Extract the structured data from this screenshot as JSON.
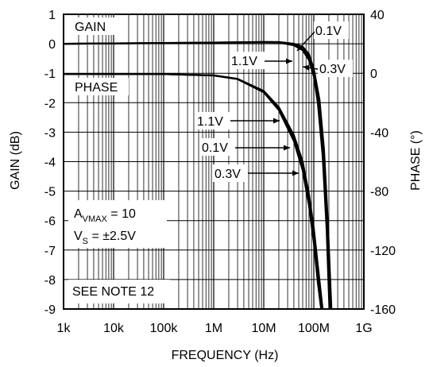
{
  "chart_data": {
    "type": "line",
    "xlabel": "FREQUENCY (Hz)",
    "ylabel_left": "GAIN (dB)",
    "ylabel_right": "PHASE (°)",
    "x_scale": "log",
    "xlim": [
      1000,
      1000000000
    ],
    "ylim_left": [
      -9,
      1
    ],
    "ylim_right": [
      -160,
      40
    ],
    "grid": true,
    "x_ticks": [
      {
        "value": 1000,
        "label": "1k"
      },
      {
        "value": 10000,
        "label": "10k"
      },
      {
        "value": 100000,
        "label": "100k"
      },
      {
        "value": 1000000,
        "label": "1M"
      },
      {
        "value": 10000000,
        "label": "10M"
      },
      {
        "value": 100000000,
        "label": "100M"
      },
      {
        "value": 1000000000,
        "label": "1G"
      }
    ],
    "y_left_ticks": [
      {
        "value": 1,
        "label": "1"
      },
      {
        "value": 0,
        "label": "0"
      },
      {
        "value": -1,
        "label": "-1"
      },
      {
        "value": -2,
        "label": "-2"
      },
      {
        "value": -3,
        "label": "-3"
      },
      {
        "value": -4,
        "label": "-4"
      },
      {
        "value": -5,
        "label": "-5"
      },
      {
        "value": -6,
        "label": "-6"
      },
      {
        "value": -7,
        "label": "-7"
      },
      {
        "value": -8,
        "label": "-8"
      },
      {
        "value": -9,
        "label": "-9"
      }
    ],
    "y_right_ticks": [
      {
        "value": 40,
        "label": "40"
      },
      {
        "value": 0,
        "label": "0"
      },
      {
        "value": -40,
        "label": "-40"
      },
      {
        "value": -80,
        "label": "-80"
      },
      {
        "value": -120,
        "label": "-120"
      },
      {
        "value": -160,
        "label": "-160"
      }
    ],
    "series": [
      {
        "name": "0.1V",
        "group": "gain",
        "axis": "left",
        "x": [
          1000,
          1000000,
          10000000,
          20000000,
          40000000,
          60000000,
          80000000,
          100000000,
          120000000,
          150000000,
          180000000,
          210000000
        ],
        "y": [
          0,
          0.04,
          0.06,
          0.06,
          0.0,
          -0.15,
          -0.45,
          -1.0,
          -1.9,
          -3.6,
          -6.0,
          -9.0
        ]
      },
      {
        "name": "1.1V",
        "group": "gain",
        "axis": "left",
        "x": [
          1000,
          1000000,
          10000000,
          20000000,
          40000000,
          60000000,
          80000000,
          100000000,
          120000000,
          150000000,
          180000000,
          205000000
        ],
        "y": [
          0,
          0.03,
          0.05,
          0.04,
          -0.05,
          -0.22,
          -0.55,
          -1.1,
          -2.0,
          -3.8,
          -6.3,
          -9.0
        ]
      },
      {
        "name": "0.3V",
        "group": "gain",
        "axis": "left",
        "x": [
          1000,
          1000000,
          10000000,
          20000000,
          40000000,
          60000000,
          80000000,
          100000000,
          130000000,
          160000000,
          190000000,
          225000000
        ],
        "y": [
          0,
          0.04,
          0.06,
          0.05,
          0.0,
          -0.1,
          -0.35,
          -0.85,
          -1.9,
          -3.6,
          -6.0,
          -9.0
        ]
      },
      {
        "name": "1.1V",
        "group": "phase",
        "axis": "right",
        "x": [
          1000,
          100000,
          1000000,
          3000000,
          10000000,
          20000000,
          40000000,
          60000000,
          80000000,
          100000000,
          120000000,
          140000000
        ],
        "y": [
          -0.5,
          -0.6,
          -1.5,
          -4,
          -13,
          -25,
          -46,
          -66,
          -90,
          -115,
          -142,
          -160
        ]
      },
      {
        "name": "0.1V",
        "group": "phase",
        "axis": "right",
        "x": [
          1000,
          100000,
          1000000,
          3000000,
          10000000,
          20000000,
          40000000,
          60000000,
          80000000,
          100000000,
          120000000,
          145000000
        ],
        "y": [
          -0.5,
          -0.6,
          -1.5,
          -4,
          -12.5,
          -24,
          -44,
          -63,
          -86,
          -110,
          -136,
          -160
        ]
      },
      {
        "name": "0.3V",
        "group": "phase",
        "axis": "right",
        "x": [
          1000,
          100000,
          1000000,
          3000000,
          10000000,
          20000000,
          40000000,
          60000000,
          80000000,
          100000000,
          120000000,
          150000000
        ],
        "y": [
          -0.5,
          -0.6,
          -1.4,
          -3.8,
          -12,
          -23,
          -42,
          -60,
          -82,
          -105,
          -130,
          -160
        ]
      }
    ],
    "annotations": {
      "gain_title": "GAIN",
      "phase_title": "PHASE",
      "avmax_main": "A",
      "avmax_sub": "VMAX",
      "avmax_value": " = 10",
      "vs_main": "V",
      "vs_sub": "S",
      "vs_value": " = ±2.5V",
      "note": "SEE NOTE 12",
      "callouts": [
        {
          "text": "0.1V",
          "series": "gain 0.1V"
        },
        {
          "text": "1.1V",
          "series": "gain 1.1V"
        },
        {
          "text": "0.3V",
          "series": "gain 0.3V"
        },
        {
          "text": "1.1V",
          "series": "phase 1.1V"
        },
        {
          "text": "0.1V",
          "series": "phase 0.1V"
        },
        {
          "text": "0.3V",
          "series": "phase 0.3V"
        }
      ]
    }
  }
}
